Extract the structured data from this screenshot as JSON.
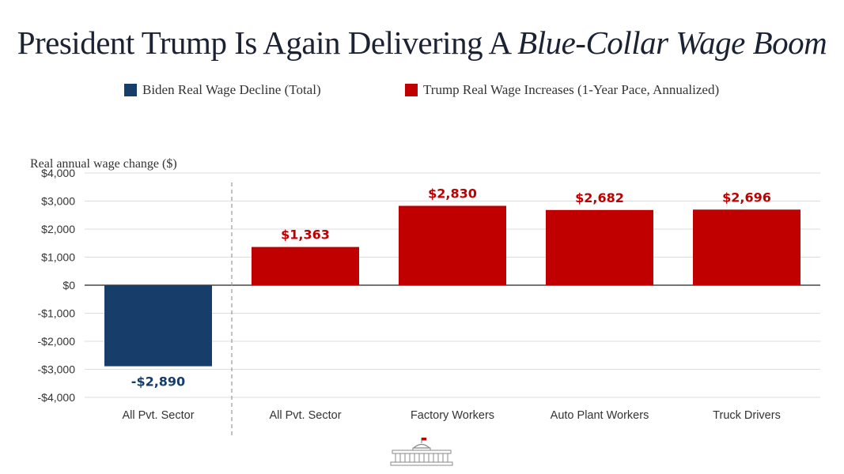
{
  "header": {
    "title_plain": "President Trump Is Again Delivering A ",
    "title_italic": "Blue-Collar Wage Boom"
  },
  "legend": [
    {
      "label": "Biden Real Wage Decline (Total)",
      "color": "#173d6b"
    },
    {
      "label": "Trump Real Wage Increases (1-Year Pace, Annualized)",
      "color": "#c00000"
    }
  ],
  "chart_data": {
    "type": "bar",
    "ylabel": "Real annual wage change ($)",
    "xlabel": "",
    "ylim": [
      -4000,
      4000
    ],
    "yticks": [
      4000,
      3000,
      2000,
      1000,
      0,
      -1000,
      -2000,
      -3000,
      -4000
    ],
    "ytick_labels": [
      "$4,000",
      "$3,000",
      "$2,000",
      "$1,000",
      "$0",
      "-$1,000",
      "-$2,000",
      "-$3,000",
      "-$4,000"
    ],
    "grid": true,
    "legend_position": "top",
    "categories": [
      "All Pvt. Sector",
      "All Pvt. Sector",
      "Factory Workers",
      "Auto Plant Workers",
      "Truck Drivers"
    ],
    "values": [
      -2890,
      1363,
      2830,
      2682,
      2696
    ],
    "data_labels": [
      "-$2,890",
      "$1,363",
      "$2,830",
      "$2,682",
      "$2,696"
    ],
    "bar_colors": [
      "#173d6b",
      "#c00000",
      "#c00000",
      "#c00000",
      "#c00000"
    ],
    "separator_after_index": 0
  }
}
